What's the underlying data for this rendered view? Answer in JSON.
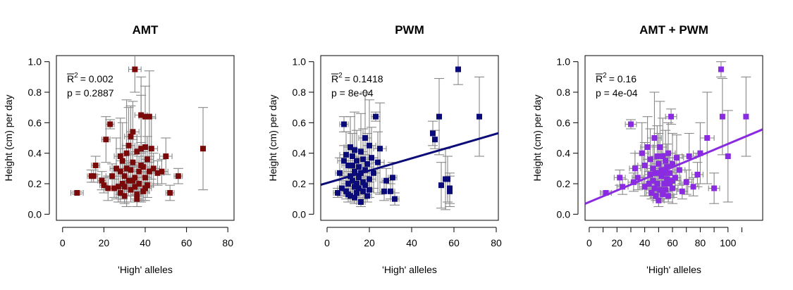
{
  "chart_data": [
    {
      "type": "scatter",
      "title": "AMT",
      "xlabel": "'High' alleles",
      "ylabel": "Height (cm) per day",
      "xlim": [
        -3,
        83
      ],
      "ylim": [
        -0.04,
        1.04
      ],
      "xticks": [
        "0",
        "20",
        "40",
        "60",
        "80"
      ],
      "yticks": [
        "0.0",
        "0.2",
        "0.4",
        "0.6",
        "0.8",
        "1.0"
      ],
      "stats": {
        "r2_label": "R",
        "r2_sup": "2",
        "r2_value": "= 0.002",
        "p_text": "p = 0.2887"
      },
      "color": "#7a0a0a",
      "errorbar_color": "#888888",
      "x": [
        7,
        14,
        15,
        16,
        19,
        20,
        21,
        22,
        23,
        24,
        25,
        26,
        27,
        28,
        28,
        29,
        29,
        30,
        30,
        31,
        31,
        32,
        32,
        33,
        33,
        33,
        34,
        34,
        34,
        35,
        35,
        35,
        36,
        36,
        37,
        37,
        38,
        38,
        39,
        39,
        40,
        40,
        40,
        41,
        41,
        42,
        42,
        43,
        44,
        46,
        48,
        50,
        52,
        56,
        68,
        30,
        36,
        38,
        40,
        28
      ],
      "y": [
        0.14,
        0.25,
        0.25,
        0.32,
        0.22,
        0.19,
        0.49,
        0.17,
        0.59,
        0.25,
        0.17,
        0.3,
        0.18,
        0.14,
        0.28,
        0.35,
        0.2,
        0.25,
        0.18,
        0.4,
        0.3,
        0.22,
        0.45,
        0.29,
        0.16,
        0.51,
        0.54,
        0.34,
        0.22,
        0.95,
        0.24,
        0.18,
        0.41,
        0.13,
        0.28,
        0.2,
        0.65,
        0.43,
        0.31,
        0.15,
        0.64,
        0.24,
        0.44,
        0.36,
        0.19,
        0.64,
        0.28,
        0.43,
        0.3,
        0.27,
        0.28,
        0.38,
        0.14,
        0.25,
        0.43,
        0.12,
        0.1,
        0.32,
        0.17,
        0.38
      ],
      "yerr": [
        0.01,
        0.04,
        0.04,
        0.06,
        0.06,
        0.05,
        0.15,
        0.08,
        0.03,
        0.08,
        0.06,
        0.2,
        0.1,
        0.06,
        0.15,
        0.25,
        0.1,
        0.08,
        0.1,
        0.35,
        0.15,
        0.1,
        0.25,
        0.1,
        0.08,
        0.2,
        0.2,
        0.15,
        0.1,
        0.15,
        0.08,
        0.06,
        0.1,
        0.04,
        0.1,
        0.08,
        0.25,
        0.35,
        0.1,
        0.06,
        0.2,
        0.1,
        0.2,
        0.15,
        0.08,
        0.3,
        0.1,
        0.2,
        0.1,
        0.08,
        0.08,
        0.12,
        0.05,
        0.05,
        0.27,
        0.05,
        0.05,
        0.15,
        0.08,
        0.25
      ],
      "xerr": [
        3,
        2,
        2,
        2,
        2,
        2,
        2,
        2,
        2,
        3,
        2,
        3,
        3,
        2,
        3,
        3,
        3,
        3,
        3,
        3,
        3,
        3,
        3,
        3,
        3,
        3,
        3,
        3,
        3,
        3,
        3,
        3,
        3,
        3,
        3,
        3,
        3,
        3,
        3,
        3,
        3,
        3,
        3,
        3,
        3,
        3,
        3,
        3,
        3,
        3,
        3,
        3,
        2,
        2,
        0,
        3,
        3,
        3,
        3,
        3
      ],
      "fit": null
    },
    {
      "type": "scatter",
      "title": "PWM",
      "xlabel": "'High' alleles",
      "ylabel": "Height (cm) per day",
      "xlim": [
        -3,
        81
      ],
      "ylim": [
        -0.04,
        1.04
      ],
      "xticks": [
        "0",
        "20",
        "40",
        "60",
        "80"
      ],
      "yticks": [
        "0.0",
        "0.2",
        "0.4",
        "0.6",
        "0.8",
        "1.0"
      ],
      "stats": {
        "r2_label": "R",
        "r2_sup": "2",
        "r2_value": "= 0.1418",
        "p_text": "p = 8e-04"
      },
      "color": "#0a0a78",
      "errorbar_color": "#888888",
      "x": [
        5,
        6,
        7,
        8,
        8,
        9,
        9,
        10,
        10,
        10,
        11,
        11,
        11,
        12,
        12,
        12,
        13,
        13,
        13,
        13,
        14,
        14,
        14,
        15,
        15,
        15,
        16,
        16,
        16,
        17,
        17,
        17,
        18,
        18,
        18,
        19,
        19,
        20,
        20,
        20,
        21,
        22,
        23,
        24,
        25,
        27,
        28,
        30,
        31,
        32,
        50,
        51,
        53,
        54,
        56,
        57,
        58,
        58,
        62,
        72
      ],
      "y": [
        0.14,
        0.27,
        0.17,
        0.59,
        0.35,
        0.15,
        0.39,
        0.2,
        0.32,
        0.13,
        0.44,
        0.25,
        0.12,
        0.38,
        0.22,
        0.32,
        0.42,
        0.18,
        0.28,
        0.11,
        0.35,
        0.2,
        0.14,
        0.31,
        0.24,
        0.17,
        0.41,
        0.27,
        0.08,
        0.36,
        0.21,
        0.15,
        0.5,
        0.29,
        0.19,
        0.33,
        0.12,
        0.45,
        0.23,
        0.16,
        0.37,
        0.27,
        0.64,
        0.34,
        0.43,
        0.15,
        0.22,
        0.15,
        0.24,
        0.1,
        0.53,
        0.49,
        0.64,
        0.19,
        0.23,
        0.23,
        0.17,
        0.15,
        0.95,
        0.64
      ],
      "yerr": [
        0.03,
        0.1,
        0.05,
        0.05,
        0.1,
        0.05,
        0.15,
        0.08,
        0.12,
        0.05,
        0.2,
        0.08,
        0.04,
        0.15,
        0.08,
        0.12,
        0.25,
        0.06,
        0.1,
        0.04,
        0.2,
        0.08,
        0.05,
        0.12,
        0.08,
        0.06,
        0.25,
        0.1,
        0.03,
        0.2,
        0.08,
        0.05,
        0.3,
        0.1,
        0.06,
        0.2,
        0.04,
        0.3,
        0.08,
        0.05,
        0.2,
        0.1,
        0.03,
        0.2,
        0.3,
        0.06,
        0.08,
        0.05,
        0.1,
        0.04,
        0.08,
        0.06,
        0.25,
        0.15,
        0.2,
        0.15,
        0.1,
        0.1,
        0.1,
        0.26
      ],
      "xerr": [
        2,
        2,
        2,
        2,
        3,
        2,
        3,
        2,
        3,
        2,
        3,
        3,
        2,
        3,
        3,
        3,
        3,
        3,
        3,
        2,
        3,
        3,
        2,
        3,
        3,
        2,
        3,
        3,
        2,
        3,
        3,
        2,
        3,
        3,
        2,
        3,
        2,
        3,
        3,
        2,
        3,
        3,
        2,
        3,
        3,
        2,
        2,
        2,
        2,
        2,
        0,
        0,
        0,
        0,
        0,
        0,
        0,
        0,
        0,
        0
      ],
      "fit": {
        "intercept": 0.205,
        "slope": 0.00403,
        "color": "#0a0a78"
      }
    },
    {
      "type": "scatter",
      "title": "AMT + PWM",
      "xlabel": "'High' alleles",
      "ylabel": "Height (cm) per day",
      "xlim": [
        -3,
        125
      ],
      "ylim": [
        -0.04,
        1.04
      ],
      "xticks": [
        "0",
        "20",
        "40",
        "60",
        "80",
        "100"
      ],
      "yticks": [
        "0.0",
        "0.2",
        "0.4",
        "0.6",
        "0.8",
        "1.0"
      ],
      "stats": {
        "r2_label": "R",
        "r2_sup": "2",
        "r2_value": "= 0.16",
        "p_text": "p = 4e-04"
      },
      "color": "#8a2be2",
      "errorbar_color": "#888888",
      "x": [
        12,
        22,
        24,
        30,
        32,
        33,
        35,
        38,
        40,
        40,
        42,
        43,
        44,
        44,
        45,
        46,
        46,
        47,
        47,
        48,
        48,
        49,
        49,
        50,
        50,
        51,
        51,
        52,
        52,
        53,
        53,
        54,
        54,
        55,
        55,
        56,
        56,
        57,
        57,
        58,
        58,
        59,
        60,
        60,
        62,
        63,
        65,
        67,
        70,
        72,
        75,
        78,
        80,
        85,
        90,
        95,
        96,
        100,
        113,
        60
      ],
      "y": [
        0.14,
        0.24,
        0.18,
        0.59,
        0.21,
        0.3,
        0.24,
        0.4,
        0.18,
        0.32,
        0.44,
        0.2,
        0.26,
        0.36,
        0.14,
        0.22,
        0.3,
        0.17,
        0.5,
        0.27,
        0.12,
        0.38,
        0.2,
        0.09,
        0.33,
        0.44,
        0.16,
        0.25,
        0.29,
        0.13,
        0.38,
        0.2,
        0.27,
        0.35,
        0.16,
        0.23,
        0.31,
        0.12,
        0.4,
        0.2,
        0.27,
        0.64,
        0.17,
        0.33,
        0.24,
        0.37,
        0.29,
        0.15,
        0.21,
        0.38,
        0.18,
        0.26,
        0.4,
        0.5,
        0.17,
        0.95,
        0.64,
        0.38,
        0.64,
        0.22
      ],
      "yerr": [
        0.01,
        0.05,
        0.05,
        0.03,
        0.06,
        0.1,
        0.08,
        0.2,
        0.06,
        0.15,
        0.2,
        0.08,
        0.1,
        0.2,
        0.04,
        0.08,
        0.15,
        0.06,
        0.3,
        0.1,
        0.03,
        0.2,
        0.08,
        0.04,
        0.2,
        0.3,
        0.06,
        0.1,
        0.15,
        0.05,
        0.25,
        0.08,
        0.1,
        0.2,
        0.06,
        0.08,
        0.15,
        0.04,
        0.2,
        0.08,
        0.1,
        0.05,
        0.06,
        0.2,
        0.08,
        0.15,
        0.1,
        0.05,
        0.08,
        0.15,
        0.06,
        0.08,
        0.2,
        0.3,
        0.1,
        0.05,
        0.25,
        0.3,
        0.26,
        0.15
      ],
      "xerr": [
        4,
        4,
        4,
        4,
        4,
        4,
        4,
        5,
        4,
        5,
        5,
        4,
        4,
        5,
        4,
        4,
        5,
        4,
        5,
        5,
        4,
        5,
        4,
        4,
        5,
        5,
        4,
        5,
        5,
        4,
        5,
        4,
        5,
        5,
        4,
        4,
        5,
        4,
        5,
        4,
        5,
        4,
        4,
        5,
        4,
        5,
        4,
        4,
        4,
        5,
        4,
        4,
        5,
        5,
        4,
        0,
        0,
        0,
        0,
        5
      ],
      "fit": {
        "intercept": 0.08,
        "slope": 0.00381,
        "color": "#8a2be2"
      }
    }
  ]
}
